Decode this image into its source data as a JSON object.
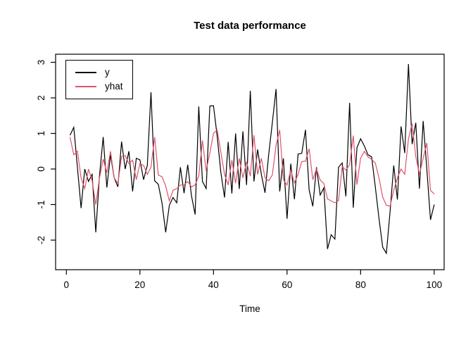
{
  "title": "Test data performance",
  "xlabel": "Time",
  "legend": {
    "items": [
      {
        "label": "y",
        "color": "#000000"
      },
      {
        "label": "yhat",
        "color": "#DF536B"
      }
    ],
    "position": "topleft"
  },
  "chart_data": {
    "type": "line",
    "title": "Test data performance",
    "xlabel": "Time",
    "ylabel": "",
    "x_ticks": [
      0,
      20,
      40,
      60,
      80,
      100
    ],
    "y_ticks": [
      -2,
      -1,
      0,
      1,
      2,
      3
    ],
    "xlim": [
      -3,
      104
    ],
    "ylim": [
      -2.85,
      3.25
    ],
    "x_start": 1,
    "grid": false,
    "legend_position": "topleft",
    "series": [
      {
        "name": "y",
        "color": "#000000",
        "values": [
          0.95,
          1.17,
          0.05,
          -1.1,
          0,
          -0.35,
          -0.15,
          -1.78,
          -0.2,
          0.9,
          -0.52,
          0.4,
          -0.25,
          -0.5,
          0.77,
          0,
          0.5,
          -0.63,
          0.3,
          0.26,
          -0.3,
          0.1,
          2.16,
          -0.33,
          -0.43,
          -0.96,
          -1.78,
          -1.02,
          -0.8,
          -0.95,
          0.05,
          -0.68,
          0.12,
          -0.75,
          -1.28,
          1.76,
          -0.35,
          -0.55,
          1.77,
          1.78,
          0.93,
          -0.1,
          -0.8,
          0.76,
          -0.69,
          1.0,
          -0.56,
          1.06,
          -0.45,
          2.2,
          -0.35,
          0.55,
          -0.15,
          -0.67,
          0.4,
          1.3,
          2.25,
          -0.63,
          0.3,
          -1.4,
          0.15,
          -0.85,
          0.42,
          0.44,
          1.1,
          -0.59,
          -1.05,
          0.05,
          -0.73,
          -0.53,
          -2.25,
          -1.85,
          -1.97,
          0.05,
          0.17,
          -0.77,
          1.86,
          -1.09,
          0.6,
          0.85,
          0.65,
          0.4,
          0.34,
          -0.5,
          -1.4,
          -2.2,
          -2.37,
          -1.22,
          0.1,
          -0.86,
          1.2,
          0.45,
          2.95,
          0.7,
          1.3,
          -0.55,
          1.35,
          0,
          -1.43,
          -1.0
        ]
      },
      {
        "name": "yhat",
        "color": "#DF536B",
        "values": [
          0.9,
          0.4,
          0.5,
          -0.25,
          -0.55,
          0,
          -0.33,
          -1.0,
          -0.26,
          0.28,
          -0.1,
          0.5,
          -0.25,
          -0.41,
          0.35,
          0.38,
          0.15,
          0.25,
          -0.3,
          0.15,
          0.1,
          -0.15,
          0.05,
          0.9,
          -0.17,
          -0.22,
          -0.48,
          -0.9,
          -0.6,
          -0.55,
          -0.45,
          -0.45,
          -0.35,
          -0.5,
          -0.45,
          -0.2,
          0.8,
          -0.05,
          0.45,
          1.0,
          1.1,
          0.47,
          -0.15,
          -0.45,
          0.25,
          -0.4,
          0.3,
          -0.25,
          0.2,
          -0.2,
          0.95,
          -0.15,
          0.3,
          -0.25,
          -0.33,
          -0.17,
          0.67,
          1.1,
          -0.3,
          -0.45,
          -0.03,
          -0.39,
          -0.15,
          0.21,
          0.22,
          0.57,
          -0.3,
          0,
          -0.31,
          -0.41,
          -0.84,
          -0.9,
          -0.95,
          -0.89,
          0.07,
          -0.03,
          0.12,
          0.94,
          -0.44,
          0.3,
          0.5,
          0.34,
          0.27,
          0.17,
          -0.26,
          -0.79,
          -1.02,
          -1.05,
          -0.6,
          -0.25,
          0,
          -0.15,
          0.85,
          1.28,
          0.35,
          -0.15,
          0.3,
          0.73,
          -0.6,
          -0.7
        ]
      }
    ]
  }
}
